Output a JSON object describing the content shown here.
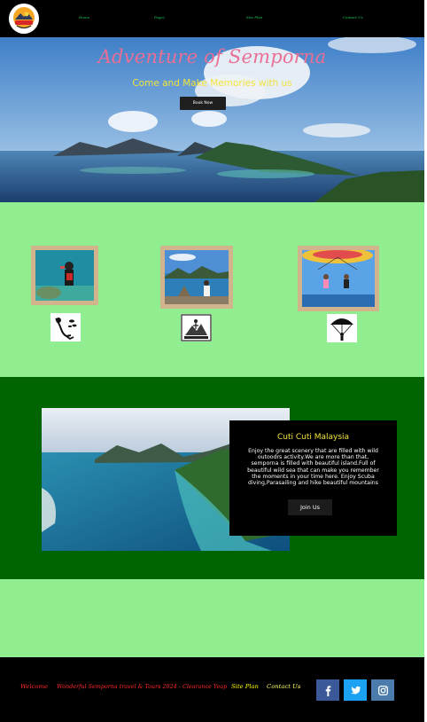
{
  "header": {
    "logo_alt": "Semporna Adventure Logo",
    "nav": [
      {
        "label": "Home"
      },
      {
        "label": "Page2"
      },
      {
        "label": "Site Plan"
      },
      {
        "label": "Contact Us"
      }
    ]
  },
  "hero": {
    "title": "Adventure of Semporna",
    "subtitle": "Come and Make Memories with us",
    "button": "Book Now"
  },
  "activities": {
    "photos": [
      "scuba-diving-photo",
      "island-viewpoint-photo",
      "parasailing-photo"
    ],
    "icons": [
      "scuba-diver-icon",
      "mountain-hiking-icon",
      "parasailing-icon"
    ]
  },
  "promo": {
    "title": "Cuti Cuti Malaysia",
    "body": "Enjoy the great scenery that are filled with wild outoodrs activity.We are more than that, semporna is filled with beautiful island.Full of beautiful wild sea that can make you remember the moments in your time here. Enjoy Scuba diving,Parasailing and hike beautiful mountains",
    "button": "Join Us"
  },
  "footer": {
    "welcome": "Welcome",
    "copyright": "Wonderful Semporna travel & Tours 2024 - Clearance Yeap",
    "site_plan": "Site Plan",
    "contact": "Contact Us",
    "social": [
      "facebook-icon",
      "twitter-icon",
      "instagram-icon"
    ]
  },
  "colors": {
    "header_bg": "#000000",
    "nav_text": "#22c55e",
    "hero_title": "#ea6f95",
    "hero_subtitle": "#f2e33b",
    "activities_bg": "#90ee90",
    "promo_bg": "#006400",
    "frame": "#d2b48c",
    "footer_welcome": "#ff2a2a",
    "footer_site_plan": "#ffff00",
    "social_blue": "#3b5998"
  }
}
